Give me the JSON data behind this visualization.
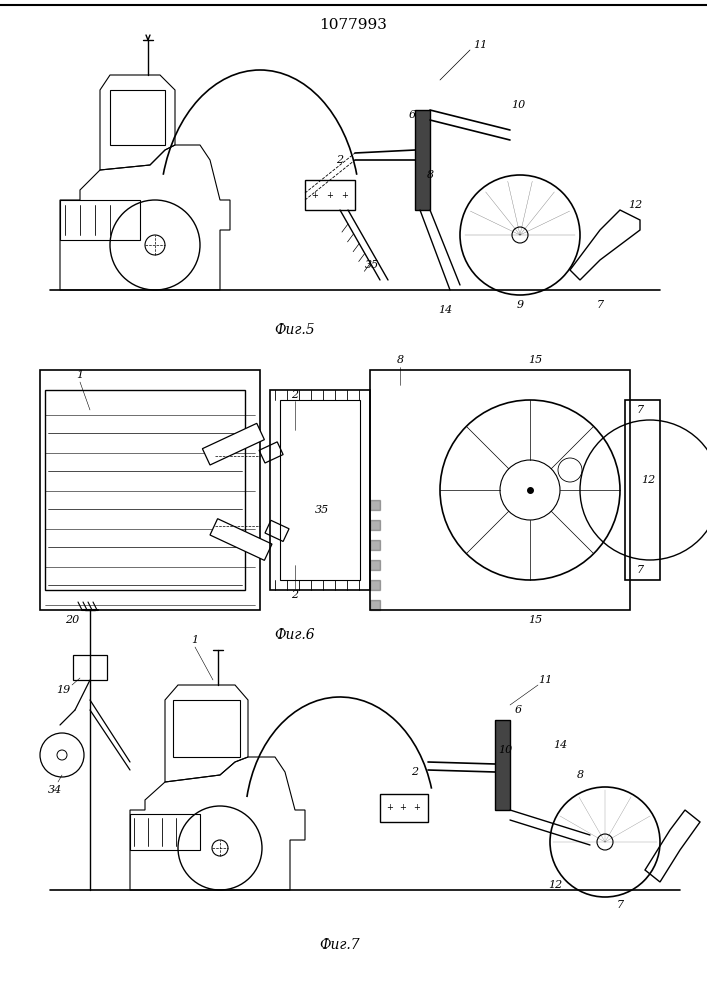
{
  "title": "1077993",
  "fig5_label": "Фиг.5",
  "fig6_label": "Фиг.6",
  "fig7_label": "Фиг.7",
  "bg_color": "#ffffff",
  "line_color": "#000000",
  "title_fontsize": 11,
  "label_fontsize": 9,
  "number_fontsize": 8
}
